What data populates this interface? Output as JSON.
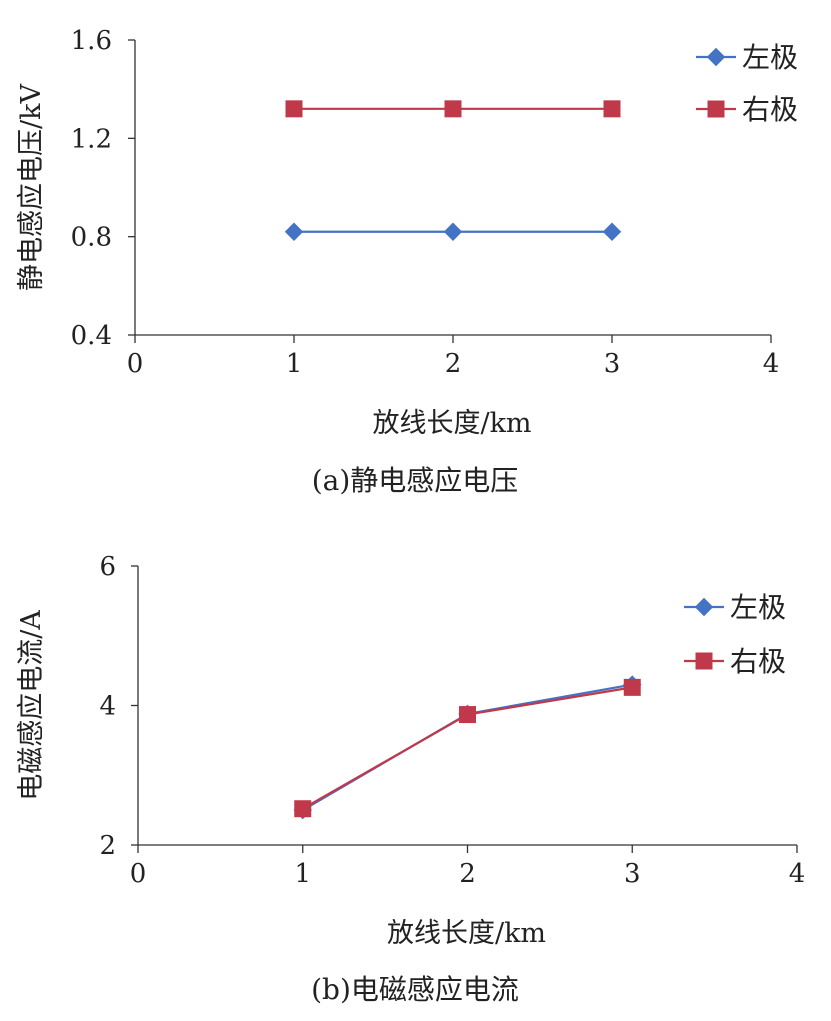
{
  "chart_data": [
    {
      "type": "line",
      "caption": "(a)静电感应电压",
      "xlabel": "放线长度/km",
      "ylabel": "静电感应电压/kV",
      "xlim": [
        0,
        4
      ],
      "ylim": [
        0.4,
        1.6
      ],
      "xticks": [
        0,
        1,
        2,
        3,
        4
      ],
      "yticks": [
        0.4,
        0.8,
        1.2,
        1.6
      ],
      "xtick_labels": [
        "0",
        "1",
        "2",
        "3",
        "4"
      ],
      "ytick_labels": [
        "0.4",
        "0.8",
        "1.2",
        "1.6"
      ],
      "grid": false,
      "legend_position": "top-right",
      "x": [
        1,
        2,
        3
      ],
      "series": [
        {
          "name": "左极",
          "values": [
            0.82,
            0.82,
            0.82
          ],
          "color": "#4472c4",
          "marker": "diamond"
        },
        {
          "name": "右极",
          "values": [
            1.32,
            1.32,
            1.32
          ],
          "color": "#c0394a",
          "marker": "square"
        }
      ]
    },
    {
      "type": "line",
      "caption": "(b)电磁感应电流",
      "xlabel": "放线长度/km",
      "ylabel": "电磁感应电流/A",
      "xlim": [
        0,
        4
      ],
      "ylim": [
        2,
        6
      ],
      "xticks": [
        0,
        1,
        2,
        3,
        4
      ],
      "yticks": [
        2,
        4,
        6
      ],
      "xtick_labels": [
        "0",
        "1",
        "2",
        "3",
        "4"
      ],
      "ytick_labels": [
        "2",
        "4",
        "6"
      ],
      "grid": false,
      "legend_position": "top-right",
      "x": [
        1,
        2,
        3
      ],
      "series": [
        {
          "name": "左极",
          "values": [
            2.5,
            3.88,
            4.3
          ],
          "color": "#4472c4",
          "marker": "diamond"
        },
        {
          "name": "右极",
          "values": [
            2.52,
            3.87,
            4.26
          ],
          "color": "#c0394a",
          "marker": "square"
        }
      ]
    }
  ]
}
